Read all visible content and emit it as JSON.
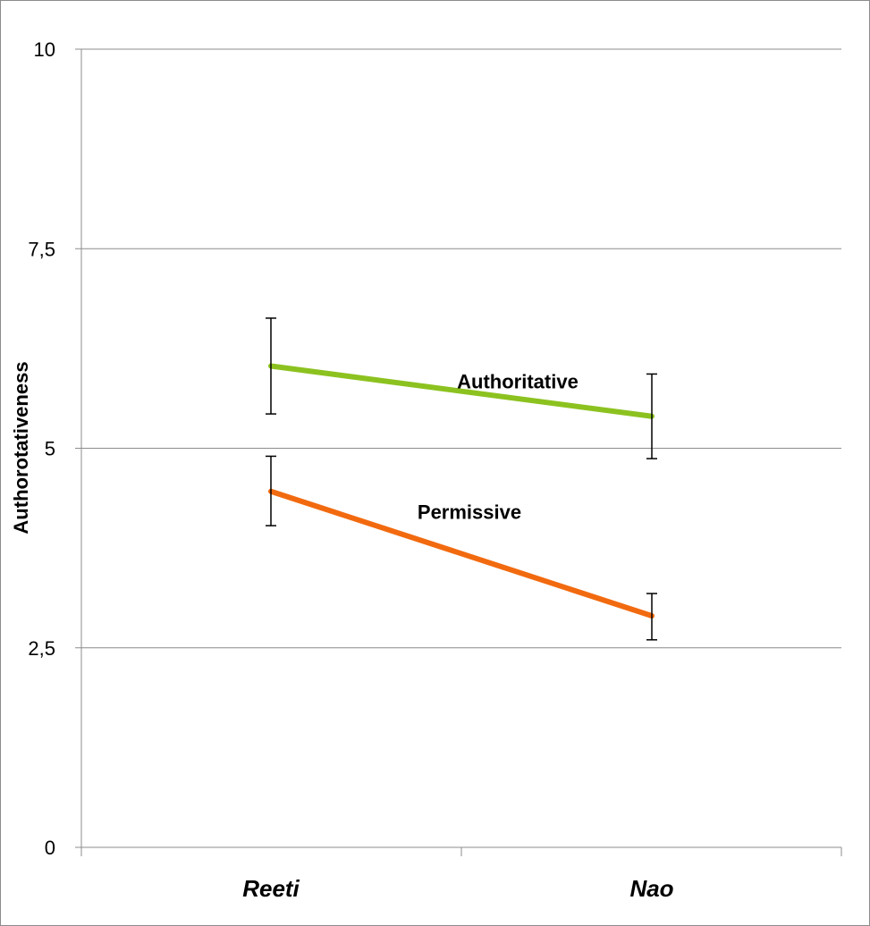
{
  "chart_data": {
    "type": "line",
    "title": "",
    "xlabel": "",
    "ylabel": "Authorotativeness",
    "categories": [
      "Reeti",
      "Nao"
    ],
    "ylim": [
      0,
      10
    ],
    "yticks": [
      0,
      2.5,
      5,
      7.5,
      10
    ],
    "ytick_labels": [
      "0",
      "2,5",
      "5",
      "7,5",
      "10"
    ],
    "grid": true,
    "legend": "none",
    "series": [
      {
        "name": "Authoritative",
        "color": "#8cc21f",
        "values": [
          6.03,
          5.4
        ],
        "error_low": [
          5.43,
          4.87
        ],
        "error_high": [
          6.63,
          5.93
        ]
      },
      {
        "name": "Permissive",
        "color": "#f26a0f",
        "values": [
          4.46,
          2.9
        ],
        "error_low": [
          4.03,
          2.6
        ],
        "error_high": [
          4.9,
          3.18
        ]
      }
    ]
  }
}
